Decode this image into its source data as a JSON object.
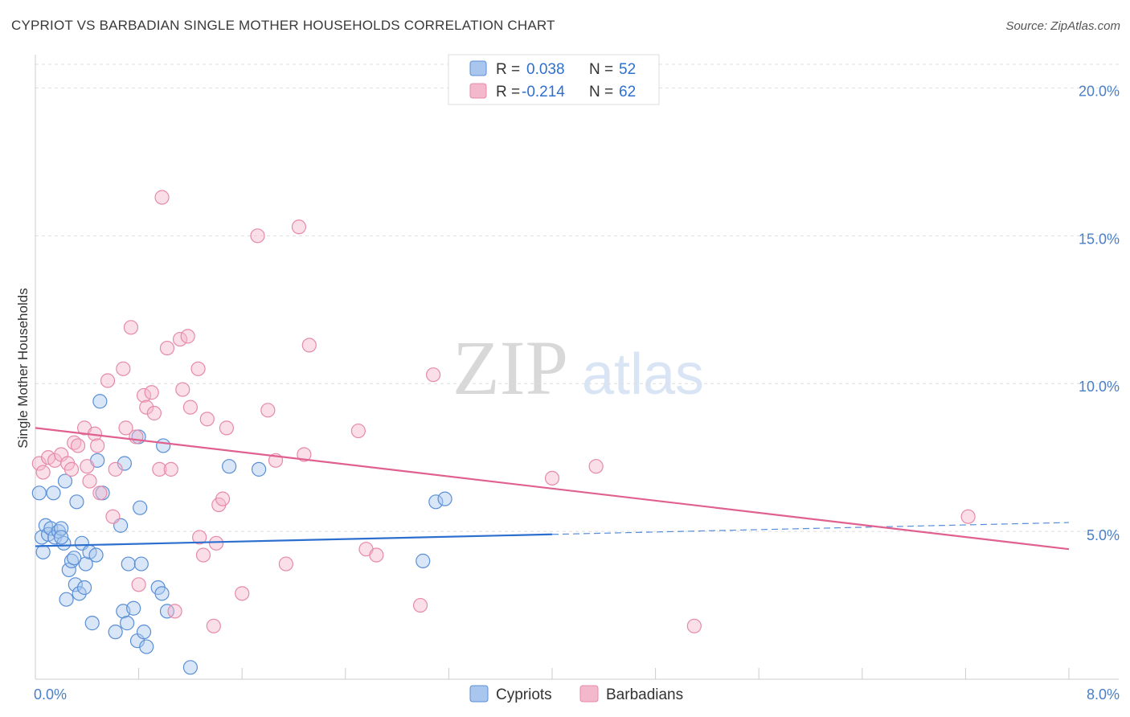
{
  "title": "CYPRIOT VS BARBADIAN SINGLE MOTHER HOUSEHOLDS CORRELATION CHART",
  "source": "Source: ZipAtlas.com",
  "watermark": {
    "zip": "ZIP",
    "atlas": "atlas"
  },
  "legend_top": [
    {
      "r_label": "R =",
      "r_value": "0.038",
      "n_label": "N =",
      "n_value": "52"
    },
    {
      "r_label": "R =",
      "r_value": "-0.214",
      "n_label": "N =",
      "n_value": "62"
    }
  ],
  "colors": {
    "cypriots_fill": "#a9c7ee",
    "cypriots_stroke": "#5a8fd6",
    "cypriots_line": "#2d6fcf",
    "barbadians_fill": "#f4b8cc",
    "barbadians_stroke": "#e68aa8",
    "barbadians_line": "#e0608f",
    "tick_text": "#4a7fc8",
    "grid": "#dddddd"
  },
  "chart_data": {
    "type": "scatter",
    "title": "CYPRIOT VS BARBADIAN SINGLE MOTHER HOUSEHOLDS CORRELATION CHART",
    "xlabel": "",
    "ylabel": "Single Mother Households",
    "xlim": [
      0,
      8
    ],
    "ylim": [
      0,
      20.8
    ],
    "x_ticks": [
      "0.0%",
      "8.0%"
    ],
    "y_ticks": [
      {
        "value": 5,
        "label": "5.0%"
      },
      {
        "value": 10,
        "label": "10.0%"
      },
      {
        "value": 15,
        "label": "15.0%"
      },
      {
        "value": 20,
        "label": "20.0%"
      }
    ],
    "grid": "horizontal dashed",
    "legend": "top-center and bottom-center",
    "series": [
      {
        "name": "Cypriots",
        "r": 0.038,
        "n": 52,
        "trend": {
          "x0": 0.0,
          "y0": 4.5,
          "x1": 4.0,
          "y1": 4.9,
          "dashed_to_x": 8.0,
          "dashed_to_y": 5.3
        },
        "points": [
          [
            0.03,
            6.3
          ],
          [
            0.05,
            4.8
          ],
          [
            0.06,
            4.3
          ],
          [
            0.08,
            5.2
          ],
          [
            0.1,
            4.9
          ],
          [
            0.12,
            5.1
          ],
          [
            0.14,
            6.3
          ],
          [
            0.15,
            4.8
          ],
          [
            0.18,
            5.0
          ],
          [
            0.2,
            5.1
          ],
          [
            0.22,
            4.6
          ],
          [
            0.23,
            6.7
          ],
          [
            0.26,
            3.7
          ],
          [
            0.28,
            4.0
          ],
          [
            0.31,
            3.2
          ],
          [
            0.32,
            6.0
          ],
          [
            0.34,
            2.9
          ],
          [
            0.36,
            4.6
          ],
          [
            0.38,
            3.1
          ],
          [
            0.39,
            3.9
          ],
          [
            0.42,
            4.3
          ],
          [
            0.44,
            1.9
          ],
          [
            0.47,
            4.2
          ],
          [
            0.48,
            7.4
          ],
          [
            0.5,
            9.4
          ],
          [
            0.52,
            6.3
          ],
          [
            0.62,
            1.6
          ],
          [
            0.66,
            5.2
          ],
          [
            0.68,
            2.3
          ],
          [
            0.69,
            7.3
          ],
          [
            0.71,
            1.9
          ],
          [
            0.72,
            3.9
          ],
          [
            0.76,
            2.4
          ],
          [
            0.79,
            1.3
          ],
          [
            0.8,
            8.2
          ],
          [
            0.81,
            5.8
          ],
          [
            0.82,
            3.9
          ],
          [
            0.84,
            1.6
          ],
          [
            0.86,
            1.1
          ],
          [
            0.95,
            3.1
          ],
          [
            0.98,
            2.9
          ],
          [
            0.99,
            7.9
          ],
          [
            1.02,
            2.3
          ],
          [
            1.2,
            0.4
          ],
          [
            1.5,
            7.2
          ],
          [
            1.73,
            7.1
          ],
          [
            3.1,
            6.0
          ],
          [
            3.17,
            6.1
          ],
          [
            3.0,
            4.0
          ],
          [
            0.3,
            4.1
          ],
          [
            0.24,
            2.7
          ],
          [
            0.2,
            4.8
          ]
        ]
      },
      {
        "name": "Barbadians",
        "r": -0.214,
        "n": 62,
        "trend": {
          "x0": 0.0,
          "y0": 8.5,
          "x1": 8.0,
          "y1": 4.4
        },
        "points": [
          [
            0.03,
            7.3
          ],
          [
            0.06,
            7.0
          ],
          [
            0.1,
            7.5
          ],
          [
            0.15,
            7.4
          ],
          [
            0.2,
            7.6
          ],
          [
            0.25,
            7.3
          ],
          [
            0.28,
            7.1
          ],
          [
            0.3,
            8.0
          ],
          [
            0.33,
            7.9
          ],
          [
            0.38,
            8.5
          ],
          [
            0.4,
            7.2
          ],
          [
            0.42,
            6.7
          ],
          [
            0.46,
            8.3
          ],
          [
            0.48,
            7.9
          ],
          [
            0.5,
            6.3
          ],
          [
            0.56,
            10.1
          ],
          [
            0.6,
            5.5
          ],
          [
            0.62,
            7.1
          ],
          [
            0.68,
            10.5
          ],
          [
            0.7,
            8.5
          ],
          [
            0.74,
            11.9
          ],
          [
            0.78,
            8.2
          ],
          [
            0.8,
            3.2
          ],
          [
            0.84,
            9.6
          ],
          [
            0.86,
            9.2
          ],
          [
            0.9,
            9.7
          ],
          [
            0.92,
            9.0
          ],
          [
            0.96,
            7.1
          ],
          [
            0.98,
            16.3
          ],
          [
            1.02,
            11.2
          ],
          [
            1.05,
            7.1
          ],
          [
            1.08,
            2.3
          ],
          [
            1.12,
            11.5
          ],
          [
            1.14,
            9.8
          ],
          [
            1.18,
            11.6
          ],
          [
            1.2,
            9.2
          ],
          [
            1.26,
            10.5
          ],
          [
            1.3,
            4.2
          ],
          [
            1.33,
            8.8
          ],
          [
            1.38,
            1.8
          ],
          [
            1.4,
            4.6
          ],
          [
            1.42,
            5.9
          ],
          [
            1.45,
            6.1
          ],
          [
            1.48,
            8.5
          ],
          [
            1.6,
            2.9
          ],
          [
            1.72,
            15.0
          ],
          [
            1.8,
            9.1
          ],
          [
            1.86,
            7.4
          ],
          [
            1.94,
            3.9
          ],
          [
            2.04,
            15.3
          ],
          [
            2.08,
            7.6
          ],
          [
            2.12,
            11.3
          ],
          [
            2.5,
            8.4
          ],
          [
            2.56,
            4.4
          ],
          [
            2.64,
            4.2
          ],
          [
            2.98,
            2.5
          ],
          [
            3.08,
            10.3
          ],
          [
            4.0,
            6.8
          ],
          [
            4.34,
            7.2
          ],
          [
            5.1,
            1.8
          ],
          [
            7.22,
            5.5
          ],
          [
            1.27,
            4.8
          ]
        ]
      }
    ]
  },
  "bottom_legend": [
    "Cypriots",
    "Barbadians"
  ]
}
